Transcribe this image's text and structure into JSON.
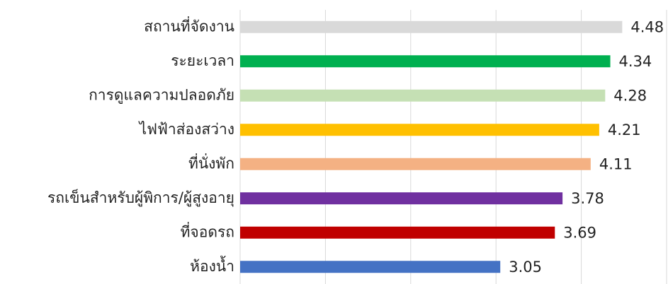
{
  "chart_data": {
    "type": "hbar",
    "categories": [
      "สถานที่จัดงาน",
      "ระยะเวลา",
      "การดูแลความปลอดภัย",
      "ไฟฟ้าส่องสว่าง",
      "ที่นั่งพัก",
      "รถเข็นสำหรับผู้พิการ/ผู้สูงอายุ",
      "ที่จอดรถ",
      "ห้องน้ำ"
    ],
    "values": [
      4.48,
      4.34,
      4.28,
      4.21,
      4.11,
      3.78,
      3.69,
      3.05
    ],
    "colors": [
      "#d9d9d9",
      "#00b050",
      "#c5e0b4",
      "#ffc000",
      "#f4b183",
      "#7030a0",
      "#c00000",
      "#4472c4"
    ],
    "xlim": [
      0,
      5
    ],
    "xticks": [
      0,
      1,
      2,
      3,
      4,
      5
    ],
    "grid": true
  }
}
